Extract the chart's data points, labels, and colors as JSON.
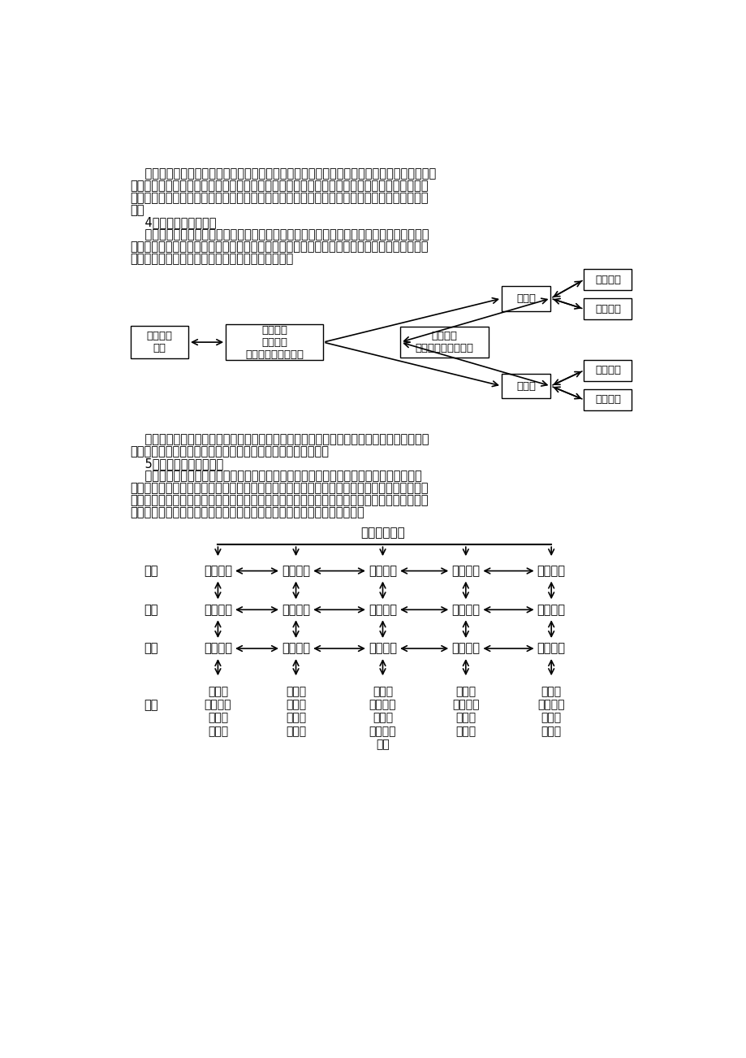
{
  "bg_color": "#ffffff",
  "text_color": "#000000",
  "para_lines": [
    "    多班互动教学是在多媒体辅助教学、网络教婊教学基础上发展起来的一种比较新的教学模式。",
    "它分为多班多媒体辅助教学、多班网络教婊教学及多班综合教学。多班互动教学的课堂教学模式",
    "与前两种教学模式没多大区别，只是在形式上打破了空间限制，节省了人力，实现了教学资源共",
    "享。",
    "    4．远程教育教学模式",
    "    远程教育教学在多班教学的模式上进一步打破了空间限制。多班教学通常是在同一所学校多",
    "个班级之间进行教学，而远程教学是在不同的地方、不同的学校多个班级之间进行的教学。它实",
    "现了异地交互，打破了空间限制。其教学形式如下："
  ],
  "post_diag_lines": [
    "    远程教育教学模式进一步打破传统教育在时间、空间上的限制，能使分布在不同地方的每所",
    "学校、每个学生都能得到丰富的教育教学资源，实现资源共享。",
    "    5．学生研究性学习模式",
    "    网络环境下的研究性学习对学生主体性的发挥，思维能力的培养，有着不可估量的作用。",
    "学生可以同步学习，也可以异步学习；可以同步交流，也可以异步交流；可以同地交流，也可以",
    "异地交流。本人结合我校实际情况，为学生探索出一套网络环境下的研究性学习模式，收到了较",
    "好的效果。现将我校网络环境以及在该环境下的研究性学习模式介绍如下："
  ],
  "diag2_title": "教师主导作用",
  "row_chengxu": [
    "提出问题",
    "协作学习",
    "人机对话",
    "解决问题",
    "阶段评价"
  ],
  "row_mudi": [
    "任务驱动",
    "任务分工",
    "任务实施",
    "任务落实",
    "任务完成"
  ],
  "row_yaoso": [
    "信息立题",
    "信息分配",
    "信息收集",
    "信息处理",
    "信息发布"
  ],
  "row_gongneng": [
    "营造学\n习氛围，\n产生解\n感需要",
    "激励学\n生自主\n学习分\n工合作",
    "激发学\n习兴趣，\n培养动\n脑、动手\n能力",
    "加强思\n维训练，\n掌握解\n感方法",
    "激励探\n索创新，\n促进合\n作学习"
  ],
  "label_chengxu": "程序",
  "label_mudi": "目的",
  "label_yaoso": "要素",
  "label_gongneng": "功能",
  "box_teacher": "教师主讲\n班级",
  "box_tech": "信息技术\n网络系统\n实时数字流媒体系统",
  "box_network": "网络系统\n实时数字流媒体系统",
  "box_jia_school": "甲学校",
  "box_yi_school": "乙学校",
  "box_jia_jia": "甲班学生",
  "box_jia_yi": "乙班学生",
  "box_yi_jia": "甲班学生",
  "box_yi_yi": "乙班学生"
}
